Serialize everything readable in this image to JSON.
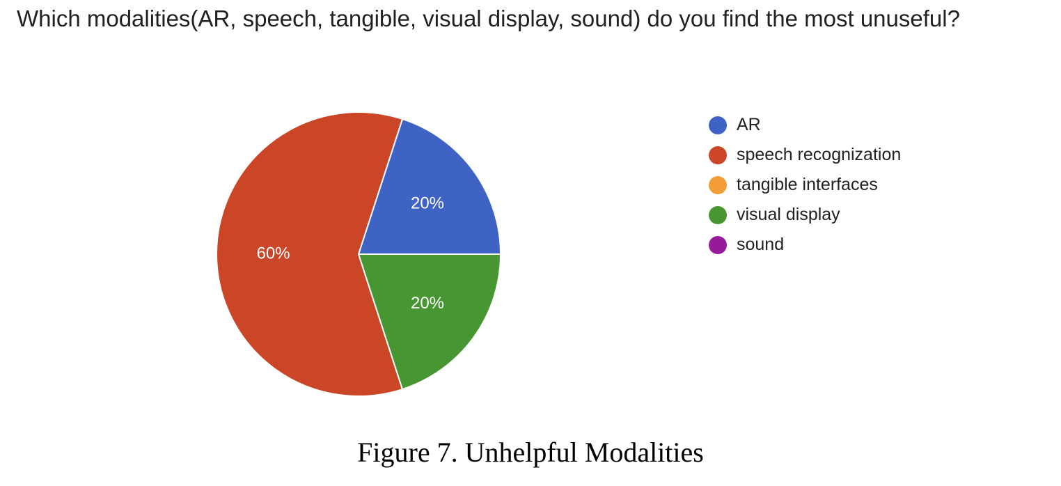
{
  "question": "Which modalities(AR, speech, tangible, visual display, sound) do you find the most unuseful?",
  "caption": "Figure 7. Unhelpful Modalities",
  "chart_data": {
    "type": "pie",
    "title": "Which modalities(AR, speech, tangible, visual display, sound) do you find the most unuseful?",
    "legend_position": "right",
    "slices": [
      {
        "label": "AR",
        "value": 20,
        "display": "20%",
        "color": "#3f63c5"
      },
      {
        "label": "speech recognization",
        "value": 60,
        "display": "60%",
        "color": "#cb4627"
      },
      {
        "label": "tangible interfaces",
        "value": 0,
        "display": "",
        "color": "#f29d35"
      },
      {
        "label": "visual display",
        "value": 20,
        "display": "20%",
        "color": "#479632"
      },
      {
        "label": "sound",
        "value": 0,
        "display": "",
        "color": "#951b99"
      }
    ]
  }
}
